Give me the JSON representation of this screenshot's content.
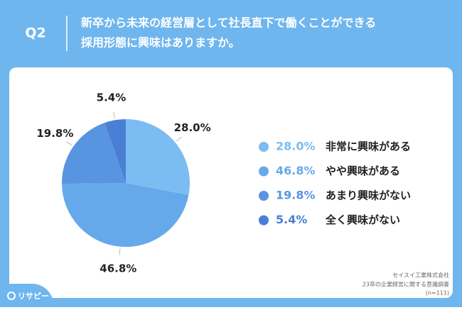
{
  "chart_data": {
    "type": "pie",
    "question": "Q2",
    "title": [
      "新卒から未来の経営層として社長直下で働くことができる",
      "採用形態に興味はありますか。"
    ],
    "categories": [
      "非常に興味がある",
      "やや興味がある",
      "あまり興味がない",
      "全く興味がない"
    ],
    "values": [
      28.0,
      46.8,
      19.8,
      5.4
    ],
    "value_labels": [
      "28.0%",
      "46.8%",
      "19.8%",
      "5.4%"
    ],
    "colors": [
      "#7bbdf2",
      "#66a9ea",
      "#5895e1",
      "#4b7fd5"
    ],
    "source": [
      "セイスイ工業株式会社",
      "23卒の企業経営に関する意識調査",
      "(n=111)"
    ],
    "logo": "リサピー"
  }
}
